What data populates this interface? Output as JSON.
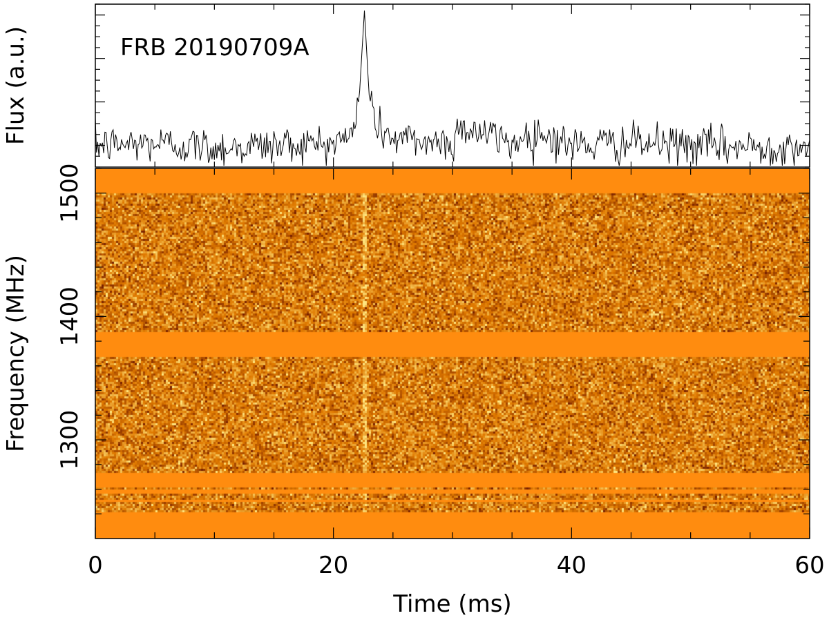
{
  "chart_data": [
    {
      "type": "line",
      "panel": "flux-profile",
      "title": "",
      "annotation": "FRB 20190709A",
      "ylabel": "Flux (a.u.)",
      "xlabel": "",
      "xlim": [
        0,
        60
      ],
      "ylim": [
        -1.0,
        6.5
      ],
      "x_ticks": [
        0,
        20,
        40,
        60
      ],
      "show_tick_labels": false,
      "grid": false,
      "baseline_noise_sigma": 0.45,
      "series": [
        {
          "peak_time_ms": 22.6,
          "peak_flux": 6.2,
          "x": [
            0,
            5,
            10,
            15,
            20,
            21.5,
            22.2,
            22.6,
            23.0,
            23.6,
            25,
            30,
            30.6,
            35,
            37.2,
            40,
            45,
            50,
            55,
            60
          ],
          "values": [
            0.0,
            0.1,
            -0.1,
            0.0,
            0.1,
            0.4,
            2.5,
            6.2,
            2.3,
            0.9,
            0.3,
            0.1,
            0.9,
            0.1,
            0.6,
            0.0,
            0.1,
            0.0,
            -0.1,
            0.0
          ]
        }
      ]
    },
    {
      "type": "heatmap",
      "panel": "dynamic-spectrum",
      "title": "",
      "xlabel": "Time (ms)",
      "ylabel": "Frequency (MHz)",
      "xlim": [
        0,
        60
      ],
      "ylim": [
        1220,
        1520
      ],
      "x_ticks": [
        0,
        20,
        40,
        60
      ],
      "x_tick_labels": [
        "0",
        "20",
        "40",
        "60"
      ],
      "y_ticks": [
        1300,
        1400,
        1500
      ],
      "y_tick_labels": [
        "1300",
        "1400",
        "1500"
      ],
      "colormap": {
        "low": "#7a2200",
        "mid": "#e07a00",
        "high": "#ffe680",
        "masked": "#ff8c0f"
      },
      "masked_bands_mhz": [
        [
          1500,
          1520
        ],
        [
          1368,
          1388
        ],
        [
          1262,
          1273
        ],
        [
          1257,
          1259
        ],
        [
          1250,
          1252
        ],
        [
          1220,
          1241
        ]
      ],
      "burst": {
        "time_ms": 22.6,
        "freq_range_mhz": [
          1241,
          1500
        ]
      },
      "grid": false
    }
  ]
}
